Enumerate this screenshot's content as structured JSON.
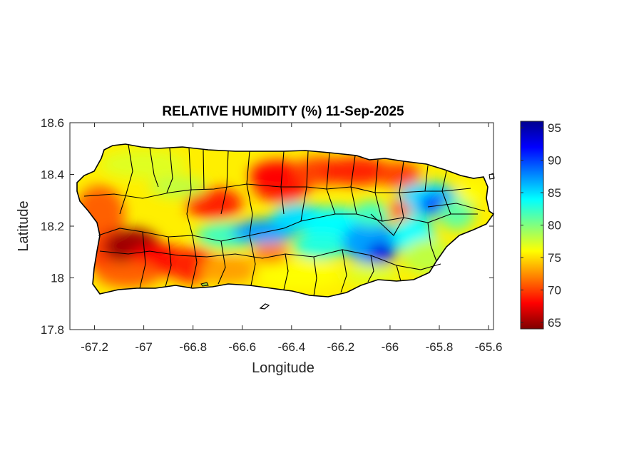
{
  "figure": {
    "title": "RELATIVE HUMIDITY (%) 11-Sep-2025",
    "xlabel": "Longitude",
    "ylabel": "Latitude",
    "xticks": [
      "-67.2",
      "-67",
      "-66.8",
      "-66.6",
      "-66.4",
      "-66.2",
      "-66",
      "-65.8",
      "-65.6"
    ],
    "yticks": [
      "18.6",
      "18.4",
      "18.2",
      "18",
      "17.8"
    ]
  },
  "colorbar": {
    "ticks": [
      "95",
      "90",
      "85",
      "80",
      "75",
      "70",
      "65"
    ],
    "min": 64,
    "max": 96,
    "colors": [
      "#7f0000",
      "#ff0000",
      "#ff8000",
      "#ffff00",
      "#80ff80",
      "#00ffff",
      "#0080ff",
      "#0000ff",
      "#00008f"
    ]
  },
  "chart_data": {
    "type": "heatmap",
    "title": "RELATIVE HUMIDITY (%) 11-Sep-2025",
    "xlabel": "Longitude",
    "ylabel": "Latitude",
    "xlim": [
      -67.3,
      -65.58
    ],
    "ylim": [
      17.8,
      18.6
    ],
    "x_ticks": [
      -67.2,
      -67,
      -66.8,
      -66.6,
      -66.4,
      -66.2,
      -66,
      -65.8,
      -65.6
    ],
    "y_ticks": [
      18.6,
      18.4,
      18.2,
      18,
      17.8
    ],
    "colorbar_range": [
      64,
      96
    ],
    "colorbar_ticks": [
      65,
      70,
      75,
      80,
      85,
      90,
      95
    ],
    "colormap": "jet",
    "approx_regions": [
      {
        "lon": -65.81,
        "lat": 18.28,
        "value": 92
      },
      {
        "lon": -66.06,
        "lat": 18.1,
        "value": 92
      },
      {
        "lon": -66.55,
        "lat": 18.17,
        "value": 88
      },
      {
        "lon": -66.3,
        "lat": 18.2,
        "value": 85
      },
      {
        "lon": -65.95,
        "lat": 18.22,
        "value": 85
      },
      {
        "lon": -66.45,
        "lat": 18.38,
        "value": 68
      },
      {
        "lon": -66.18,
        "lat": 18.42,
        "value": 69
      },
      {
        "lon": -67.06,
        "lat": 18.12,
        "value": 65
      },
      {
        "lon": -66.72,
        "lat": 18.28,
        "value": 69
      },
      {
        "lon": -67.15,
        "lat": 18.3,
        "value": 71
      },
      {
        "lon": -66.85,
        "lat": 18.4,
        "value": 75
      },
      {
        "lon": -66.62,
        "lat": 18.05,
        "value": 73
      },
      {
        "lon": -66.4,
        "lat": 18.0,
        "value": 74
      },
      {
        "lon": -65.75,
        "lat": 18.12,
        "value": 77
      },
      {
        "lon": -65.72,
        "lat": 18.35,
        "value": 77
      }
    ]
  }
}
